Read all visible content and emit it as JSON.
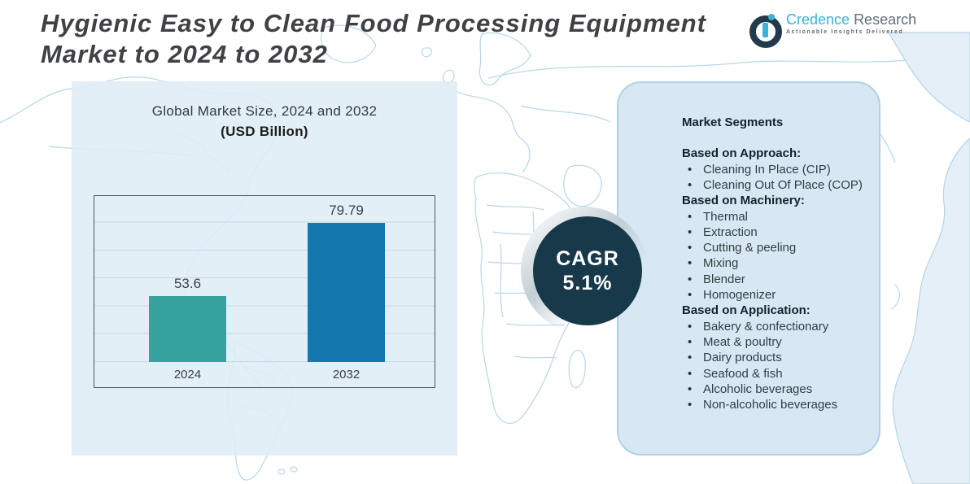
{
  "header": {
    "title_lines": [
      "Hygienic Easy to Clean Food Processing Equipment",
      "Market to 2024 to 2032"
    ],
    "logo": {
      "brand_primary": "Credence",
      "brand_secondary": "Research",
      "tagline": "Actionable Insights Delivered"
    }
  },
  "chart_data": {
    "type": "bar",
    "title": "Global Market Size, 2024 and 2032",
    "subtitle": "(USD Billion)",
    "categories": [
      "2024",
      "2032"
    ],
    "values": [
      53.6,
      79.79
    ],
    "unit": "USD Billion",
    "ylim": [
      30,
      90
    ],
    "grid": true,
    "legend": false,
    "bar_colors": [
      "#36a39e",
      "#1478ae"
    ]
  },
  "cagr": {
    "label": "CAGR",
    "value": "5.1%"
  },
  "segments": {
    "title": "Market Segments",
    "groups": [
      {
        "heading": "Based on Approach:",
        "items": [
          "Cleaning In Place (CIP)",
          "Cleaning Out Of Place (COP)"
        ]
      },
      {
        "heading": "Based on Machinery:",
        "items": [
          "Thermal",
          "Extraction",
          "Cutting & peeling",
          "Mixing",
          "Blender",
          "Homogenizer"
        ]
      },
      {
        "heading": "Based on Application:",
        "items": [
          "Bakery & confectionary",
          "Meat & poultry",
          "Dairy products",
          "Seafood & fish",
          "Alcoholic beverages",
          "Non-alcoholic beverages"
        ]
      }
    ]
  },
  "colors": {
    "accent_teal": "#36a39e",
    "accent_blue": "#1478ae",
    "badge_navy": "#17394a",
    "panel_blue": "#dfedf6",
    "map_line": "#b3d5e7",
    "brand_cyan": "#3eb1d5",
    "brand_gray": "#5e6e7b"
  }
}
